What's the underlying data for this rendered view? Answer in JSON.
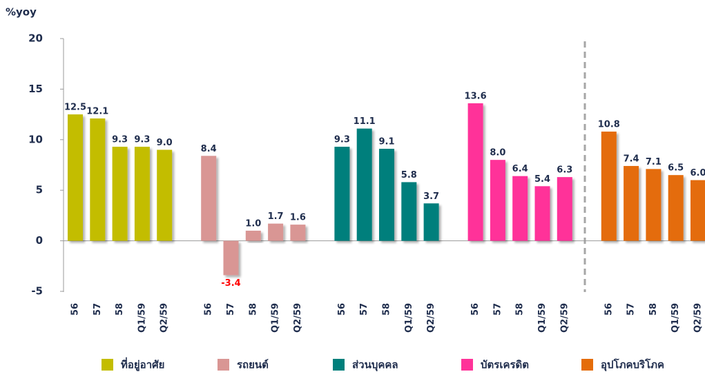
{
  "chart_data": {
    "type": "bar",
    "y_label": "%yoy",
    "categories": [
      "56",
      "57",
      "58",
      "Q1/59",
      "Q2/59"
    ],
    "series": [
      {
        "name": "ที่อยู่อาศัย",
        "color": "#c3bd00",
        "values": [
          12.5,
          12.1,
          9.3,
          9.3,
          9.0
        ],
        "value_labels": [
          "12.5",
          "12.1",
          "9.3",
          "9.3",
          "9.0"
        ]
      },
      {
        "name": "รถยนต์",
        "color": "#d99694",
        "values": [
          8.4,
          -3.4,
          1.0,
          1.7,
          1.6
        ],
        "value_labels": [
          "8.4",
          "-3.4",
          "1.0",
          "1.7",
          "1.6"
        ]
      },
      {
        "name": "ส่วนบุคคล",
        "color": "#007f7b",
        "values": [
          9.3,
          11.1,
          9.1,
          5.8,
          3.7
        ],
        "value_labels": [
          "9.3",
          "11.1",
          "9.1",
          "5.8",
          "3.7"
        ]
      },
      {
        "name": "บัตรเครดิต",
        "color": "#ff3399",
        "values": [
          13.6,
          8.0,
          6.4,
          5.4,
          6.3
        ],
        "value_labels": [
          "13.6",
          "8.0",
          "6.4",
          "5.4",
          "6.3"
        ]
      },
      {
        "name": "อุปโภคบริโภค",
        "color": "#e46c0a",
        "values": [
          10.8,
          7.4,
          7.1,
          6.5,
          6.0
        ],
        "value_labels": [
          "10.8",
          "7.4",
          "7.1",
          "6.5",
          "6.0"
        ]
      }
    ],
    "negative_label_color": "#ff0000",
    "ylim": [
      -5,
      20
    ],
    "yticks": [
      20,
      15,
      10,
      5,
      0,
      -5
    ]
  }
}
